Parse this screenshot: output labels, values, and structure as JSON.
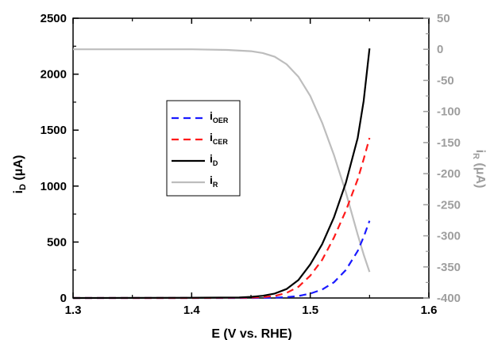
{
  "chart_data": {
    "type": "line",
    "title": "",
    "xlabel": "E (V vs. RHE)",
    "ylabel": {
      "main": "i",
      "sub": "D",
      "units": " (μA)"
    },
    "y2label": {
      "main": "i",
      "sub": "R",
      "units": " (μA)"
    },
    "xlim": [
      1.3,
      1.6
    ],
    "ylim": [
      0,
      2500
    ],
    "y2lim": [
      -400,
      50
    ],
    "x_ticks": [
      "1.3",
      "1.4",
      "1.5",
      "1.6"
    ],
    "y_ticks": [
      "0",
      "500",
      "1000",
      "1500",
      "2000",
      "2500"
    ],
    "y2_ticks": [
      "50",
      "0",
      "-50",
      "-100",
      "-150",
      "-200",
      "-250",
      "-300",
      "-350",
      "-400"
    ],
    "grid": false,
    "legend_position": "center-left",
    "series": [
      {
        "name": "OER",
        "label_main": "i",
        "label_sub": "OER",
        "axis": "left",
        "color": "#1a1aff",
        "dash": "dashed",
        "x": [
          1.3,
          1.4,
          1.45,
          1.47,
          1.48,
          1.49,
          1.5,
          1.51,
          1.52,
          1.53,
          1.54,
          1.545,
          1.55
        ],
        "y": [
          0,
          0,
          0,
          3,
          8,
          18,
          40,
          75,
          140,
          250,
          420,
          545,
          690
        ]
      },
      {
        "name": "CER",
        "label_main": "i",
        "label_sub": "CER",
        "axis": "left",
        "color": "#ff1a1a",
        "dash": "dashed",
        "x": [
          1.3,
          1.4,
          1.45,
          1.46,
          1.47,
          1.48,
          1.49,
          1.5,
          1.51,
          1.52,
          1.53,
          1.54,
          1.545,
          1.55
        ],
        "y": [
          0,
          0,
          3,
          8,
          18,
          45,
          100,
          200,
          340,
          540,
          780,
          1060,
          1240,
          1430
        ]
      },
      {
        "name": "D",
        "label_main": "i",
        "label_sub": "D",
        "axis": "left",
        "color": "#000000",
        "dash": "solid",
        "x": [
          1.3,
          1.4,
          1.44,
          1.45,
          1.46,
          1.47,
          1.48,
          1.49,
          1.5,
          1.51,
          1.52,
          1.53,
          1.54,
          1.545,
          1.55
        ],
        "y": [
          0,
          2,
          5,
          10,
          20,
          40,
          80,
          160,
          300,
          480,
          720,
          1030,
          1430,
          1760,
          2230
        ]
      },
      {
        "name": "R",
        "label_main": "i",
        "label_sub": "R",
        "axis": "right",
        "color": "#bdbdbd",
        "dash": "solid",
        "x": [
          1.3,
          1.4,
          1.43,
          1.45,
          1.46,
          1.47,
          1.48,
          1.49,
          1.5,
          1.51,
          1.52,
          1.53,
          1.54,
          1.545,
          1.55
        ],
        "y": [
          0,
          0,
          -1,
          -3,
          -6,
          -12,
          -24,
          -44,
          -75,
          -118,
          -170,
          -230,
          -298,
          -330,
          -358
        ]
      }
    ]
  }
}
